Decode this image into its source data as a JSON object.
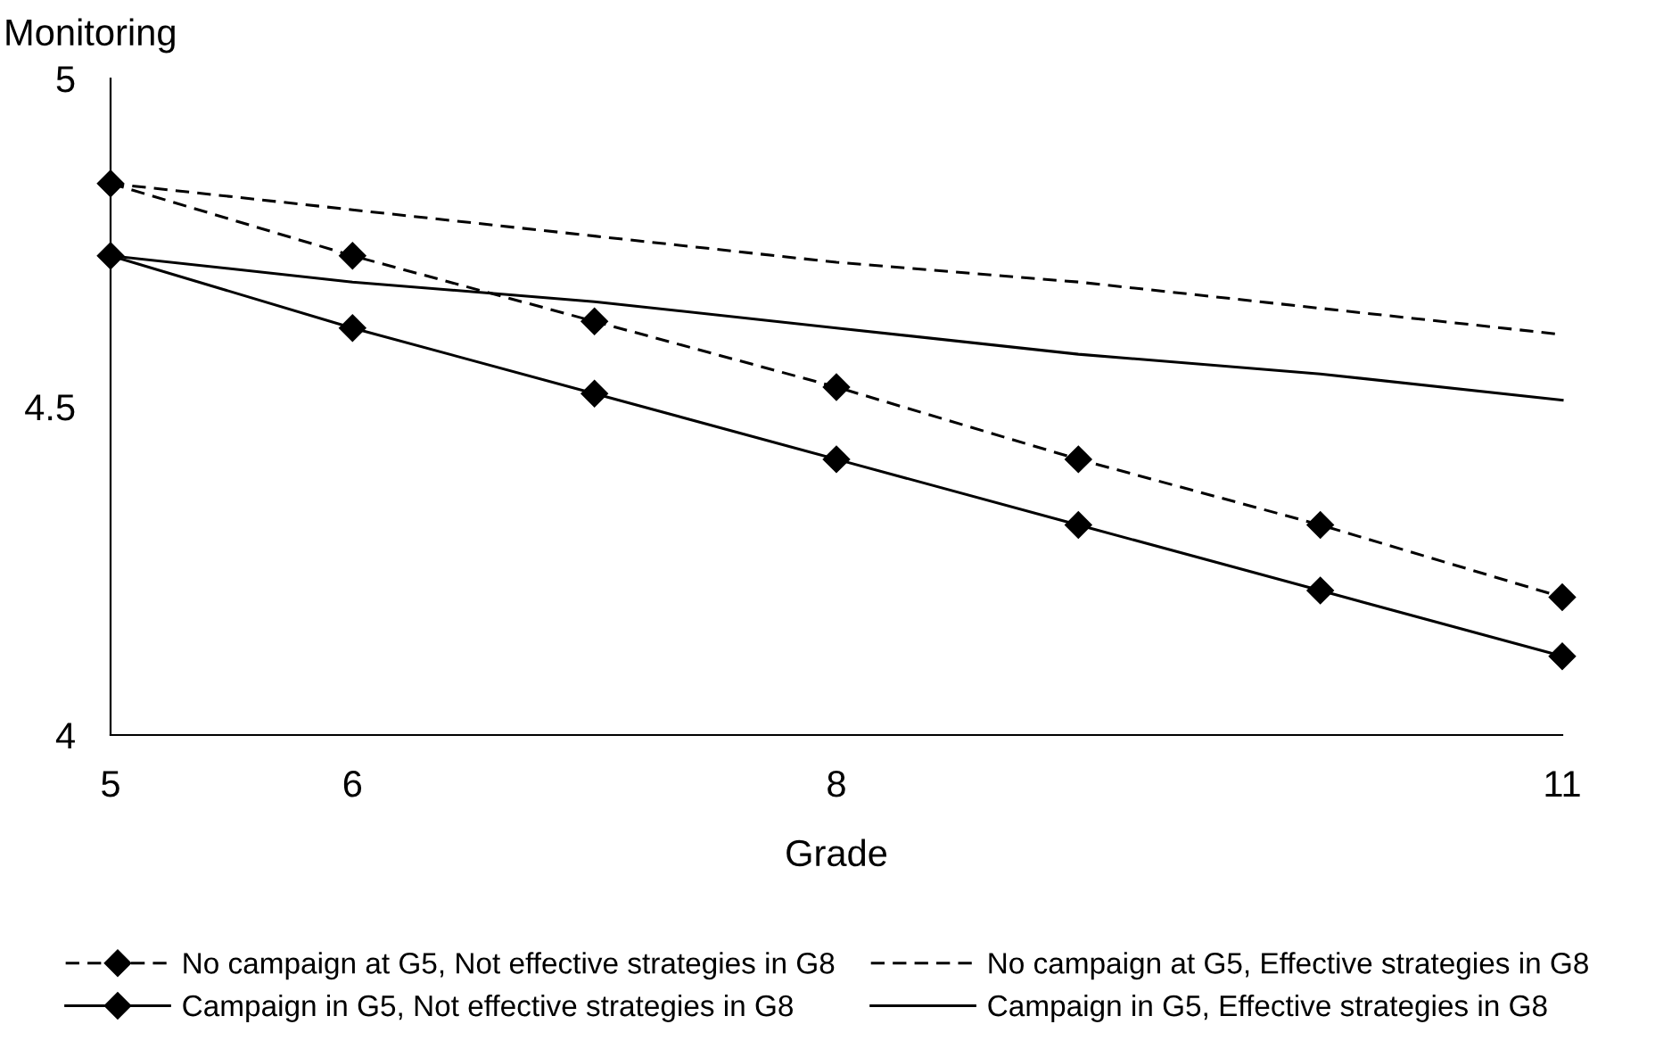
{
  "chart_data": {
    "type": "line",
    "xlabel": "Grade",
    "ylabel": "Monitoring",
    "x": [
      5,
      6,
      7,
      8,
      9,
      10,
      11
    ],
    "xlim": [
      5,
      11
    ],
    "xticks": [
      5,
      6,
      8,
      11
    ],
    "ylim": [
      4,
      5
    ],
    "yticks": [
      4,
      4.5,
      5
    ],
    "grid": false,
    "legend": "bottom",
    "series": [
      {
        "name": "No campaign at G5, Not effective strategies in G8",
        "color": "#000000",
        "line_style": "dashed",
        "marker": "diamond",
        "values": [
          4.84,
          4.73,
          4.63,
          4.53,
          4.42,
          4.32,
          4.21
        ]
      },
      {
        "name": "No campaign at G5, Effective strategies in G8",
        "color": "#000000",
        "line_style": "dashed",
        "marker": "none",
        "values": [
          4.84,
          4.8,
          4.76,
          4.72,
          4.69,
          4.65,
          4.61
        ]
      },
      {
        "name": "Campaign in G5, Not effective strategies in G8",
        "color": "#000000",
        "line_style": "solid",
        "marker": "diamond",
        "values": [
          4.73,
          4.62,
          4.52,
          4.42,
          4.32,
          4.22,
          4.12
        ]
      },
      {
        "name": "Campaign in G5, Effective strategies in G8",
        "color": "#000000",
        "line_style": "solid",
        "marker": "none",
        "values": [
          4.73,
          4.69,
          4.66,
          4.62,
          4.58,
          4.55,
          4.51
        ]
      }
    ]
  }
}
